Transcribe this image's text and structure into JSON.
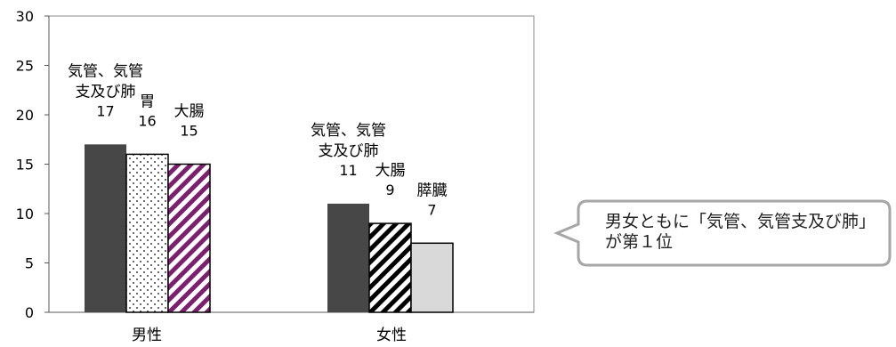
{
  "chart_data": {
    "type": "bar",
    "categories": [
      "男性",
      "女性"
    ],
    "ylim": [
      0,
      30
    ],
    "yticks": [
      0,
      5,
      10,
      15,
      20,
      25,
      30
    ],
    "grid": false,
    "groups": [
      {
        "category": "男性",
        "bars": [
          {
            "label": [
              "気管、気管",
              "支及び肺"
            ],
            "value": 17,
            "fill": "solid-dark"
          },
          {
            "label": [
              "胃"
            ],
            "value": 16,
            "fill": "dots"
          },
          {
            "label": [
              "大腸"
            ],
            "value": 15,
            "fill": "diagonal-purple"
          }
        ]
      },
      {
        "category": "女性",
        "bars": [
          {
            "label": [
              "気管、気管",
              "支及び肺"
            ],
            "value": 11,
            "fill": "solid-dark"
          },
          {
            "label": [
              "大腸"
            ],
            "value": 9,
            "fill": "diagonal-black"
          },
          {
            "label": [
              "膵臓"
            ],
            "value": 7,
            "fill": "solid-light"
          }
        ]
      }
    ],
    "colors": {
      "solid_dark": "#474747",
      "solid_light": "#d9d9d9",
      "diagonal_purple": "#7b1f6e",
      "diagonal_black": "#000000",
      "axis": "#595959",
      "frame": "#888888"
    }
  },
  "callout": {
    "text": "男女ともに「気管、気管支及び肺」が第１位",
    "border_color": "#a6a6a6"
  }
}
